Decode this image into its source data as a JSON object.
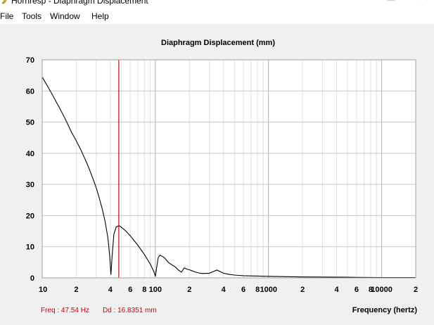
{
  "window": {
    "title": "Hornresp - Diaphragm Displacement",
    "controls": {
      "minimize": "minimize",
      "maximize": "maximize",
      "close": "close"
    }
  },
  "menu": {
    "items": [
      "File",
      "Tools",
      "Window",
      "Help"
    ]
  },
  "status": {
    "freq": "Freq : 47.54 Hz",
    "dd": "Dd : 16.8351 mm"
  },
  "colors": {
    "curve": "#000000",
    "cursor": "#cc0000",
    "grid": "#c8c8c8",
    "plot_bg": "#ffffff"
  },
  "chart_data": {
    "type": "line",
    "title": "Diaphragm Displacement (mm)",
    "xlabel": "Frequency (hertz)",
    "ylabel": "",
    "xscale": "log",
    "xlim": [
      10,
      20000
    ],
    "ylim": [
      0,
      70
    ],
    "yticks": [
      0,
      10,
      20,
      30,
      40,
      50,
      60,
      70
    ],
    "xtick_labels": [
      {
        "x": 10,
        "label": "10"
      },
      {
        "x": 20,
        "label": "2"
      },
      {
        "x": 40,
        "label": "4"
      },
      {
        "x": 60,
        "label": "6"
      },
      {
        "x": 80,
        "label": "8"
      },
      {
        "x": 100,
        "label": "100"
      },
      {
        "x": 200,
        "label": "2"
      },
      {
        "x": 400,
        "label": "4"
      },
      {
        "x": 600,
        "label": "6"
      },
      {
        "x": 800,
        "label": "8"
      },
      {
        "x": 1000,
        "label": "1000"
      },
      {
        "x": 2000,
        "label": "2"
      },
      {
        "x": 4000,
        "label": "4"
      },
      {
        "x": 6000,
        "label": "6"
      },
      {
        "x": 8000,
        "label": "8"
      },
      {
        "x": 10000,
        "label": "10000"
      },
      {
        "x": 20000,
        "label": "2"
      }
    ],
    "cursor_x": 47.54,
    "grid": true,
    "series": [
      {
        "x": [
          10,
          12,
          14,
          16,
          18,
          20,
          22,
          24,
          26,
          28,
          30,
          32,
          34,
          36,
          38,
          39.5,
          40.5,
          41.5,
          43,
          45,
          47.54,
          50,
          55,
          60,
          70,
          80,
          90,
          97,
          100,
          102,
          106,
          110,
          120,
          130,
          140,
          150,
          160,
          170,
          180,
          190,
          200,
          210,
          220,
          230,
          240,
          260,
          300,
          350,
          400,
          450,
          500,
          550,
          600,
          1000,
          2000,
          5000,
          10000,
          20000
        ],
        "y": [
          64.5,
          59.5,
          55,
          51,
          47,
          44,
          41,
          38,
          35,
          32,
          29,
          25.5,
          22,
          18,
          13,
          7,
          1,
          7,
          14,
          16.3,
          16.8,
          16.3,
          15,
          13.5,
          10.5,
          7.5,
          4.5,
          2,
          0.5,
          2.5,
          6.5,
          7.3,
          6.5,
          5,
          4.2,
          3.5,
          2.5,
          1.8,
          3.2,
          2.8,
          2.6,
          2.3,
          2,
          1.8,
          1.6,
          1.4,
          1.5,
          2.5,
          1.5,
          1.1,
          0.9,
          0.8,
          0.7,
          0.5,
          0.3,
          0.2,
          0.1,
          0.1
        ]
      }
    ]
  }
}
